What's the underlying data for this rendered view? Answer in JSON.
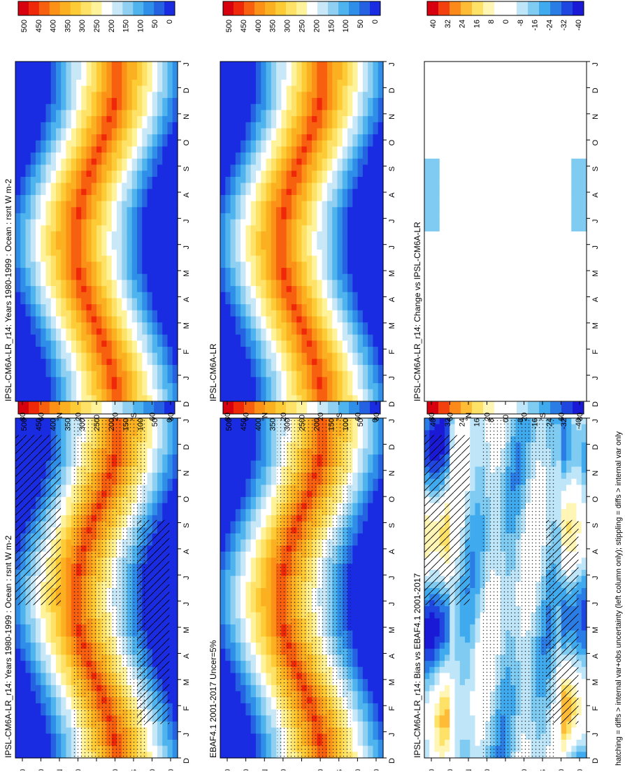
{
  "figure": {
    "footnote": "hatching = diffs > internal var+obs uncertainty (left column only); stippling = diffs > internal var only"
  },
  "chart_data": [
    {
      "type": "heatmap",
      "panel": "left-top",
      "title": "IPSL-CM6A-LR_r14: Years 1980-1999 : Ocean : rsnt W m-2",
      "x_ticks": [
        "D",
        "J",
        "F",
        "M",
        "A",
        "M",
        "J",
        "J",
        "A",
        "S",
        "O",
        "N",
        "D",
        "J"
      ],
      "y_ticks": [
        "80",
        "60",
        "°N",
        "20",
        "0",
        "20",
        "°S",
        "60",
        "80"
      ],
      "colorbar": [
        "500",
        "450",
        "400",
        "350",
        "300",
        "250",
        "200",
        "150",
        "100",
        "50",
        "0"
      ],
      "hatching": true,
      "stippling": true
    },
    {
      "type": "heatmap",
      "panel": "right-top",
      "title": "IPSL-CM6A-LR_r14: Years 1980-1999 : Ocean : rsnt W m-2",
      "x_ticks": [
        "D",
        "J",
        "F",
        "M",
        "A",
        "M",
        "J",
        "J",
        "A",
        "S",
        "O",
        "N",
        "D",
        "J"
      ],
      "y_ticks": [
        "80",
        "60",
        "°N",
        "20",
        "0",
        "20",
        "°S",
        "60",
        "80"
      ],
      "colorbar": [
        "500",
        "450",
        "400",
        "350",
        "300",
        "250",
        "200",
        "150",
        "100",
        "50",
        "0"
      ],
      "hatching": false,
      "stippling": true
    },
    {
      "type": "heatmap",
      "panel": "left-middle",
      "title": "EBAF4.1 2001-2017 Uncer=5%",
      "x_ticks": [
        "D",
        "J",
        "F",
        "M",
        "A",
        "M",
        "J",
        "J",
        "A",
        "S",
        "O",
        "N",
        "D",
        "J"
      ],
      "y_ticks": [
        "80",
        "60",
        "°N",
        "20",
        "0",
        "20",
        "°S",
        "60",
        "80"
      ],
      "colorbar": [
        "500",
        "450",
        "400",
        "350",
        "300",
        "250",
        "200",
        "150",
        "100",
        "50",
        "0"
      ],
      "hatching": false,
      "stippling": true
    },
    {
      "type": "heatmap",
      "panel": "right-middle",
      "title": "IPSL-CM6A-LR",
      "x_ticks": [
        "D",
        "J",
        "F",
        "M",
        "A",
        "M",
        "J",
        "J",
        "A",
        "S",
        "O",
        "N",
        "D",
        "J"
      ],
      "y_ticks": [
        "80",
        "60",
        "°N",
        "20",
        "0",
        "20",
        "°S",
        "60",
        "80"
      ],
      "colorbar": [
        "500",
        "450",
        "400",
        "350",
        "300",
        "250",
        "200",
        "150",
        "100",
        "50",
        "0"
      ],
      "hatching": false,
      "stippling": true
    },
    {
      "type": "heatmap",
      "panel": "left-bottom",
      "title": "IPSL-CM6A-LR_r14: Bias vs EBAF4.1 2001-2017",
      "x_ticks": [
        "D",
        "J",
        "F",
        "M",
        "A",
        "M",
        "J",
        "J",
        "A",
        "S",
        "O",
        "N",
        "D",
        "J"
      ],
      "y_ticks": [
        "80",
        "60",
        "°N",
        "20",
        "0",
        "20",
        "°S",
        "60",
        "80"
      ],
      "colorbar": [
        "40",
        "32",
        "24",
        "16",
        "8",
        "0",
        "-8",
        "-16",
        "-24",
        "-32",
        "-40"
      ],
      "hatching": true,
      "stippling": true
    },
    {
      "type": "heatmap",
      "panel": "right-bottom",
      "title": "IPSL-CM6A-LR_r14: Change vs IPSL-CM6A-LR",
      "x_ticks": [
        "D",
        "J",
        "F",
        "M",
        "A",
        "M",
        "J",
        "J",
        "A",
        "S",
        "O",
        "N",
        "D",
        "J"
      ],
      "y_ticks": [
        "80",
        "60",
        "°N",
        "20",
        "0",
        "20",
        "°S",
        "60",
        "80"
      ],
      "colorbar": [
        "40",
        "32",
        "24",
        "16",
        "8",
        "0",
        "-8",
        "-16",
        "-24",
        "-32",
        "-40"
      ],
      "hatching": false,
      "stippling": true
    }
  ],
  "palettes": {
    "flux": [
      "#d7000f",
      "#f0280a",
      "#f7600e",
      "#fb9117",
      "#fbb021",
      "#fdcb36",
      "#fee268",
      "#fef39b",
      "#ffffff",
      "#c8e8f7",
      "#8fd0f2",
      "#4fb4ee",
      "#2f8ee8",
      "#2562e2",
      "#1a2ce2"
    ],
    "diff": [
      "#d7000f",
      "#f2400f",
      "#fb8a1b",
      "#fdbb36",
      "#fee268",
      "#fff5b4",
      "#ffffff",
      "#ffffff",
      "#bfe6f8",
      "#7fcbf2",
      "#40aaee",
      "#2b7de6",
      "#2046e0",
      "#1a1ad6"
    ]
  }
}
